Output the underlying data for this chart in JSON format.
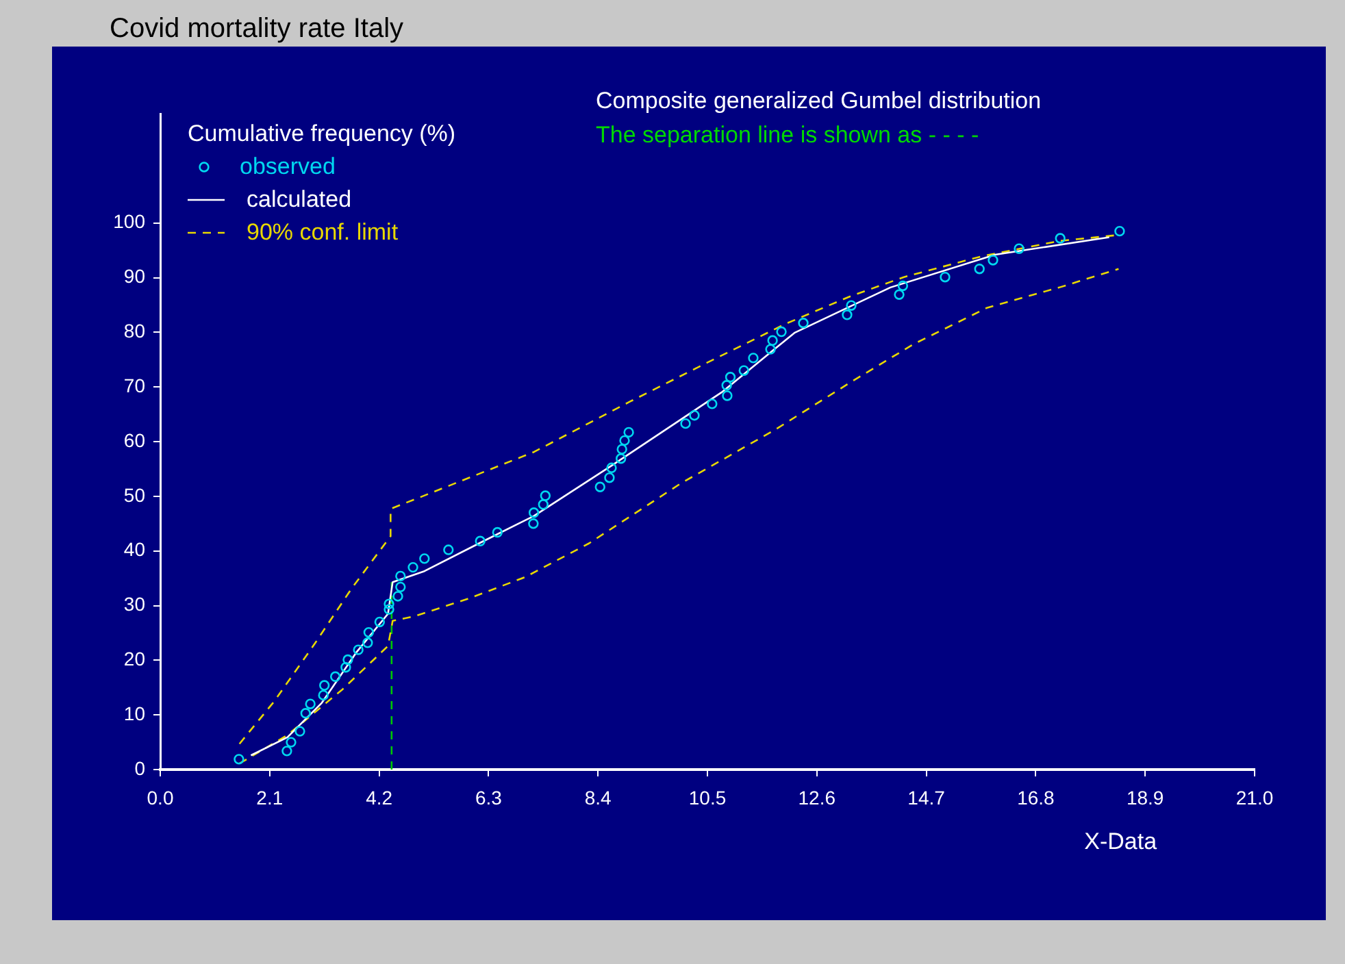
{
  "chart_data": {
    "type": "scatter",
    "title": "Covid mortality rate Italy",
    "xlabel": "X-Data",
    "ylabel": "Cumulative frequency (%)",
    "annotations": [
      "Composite generalized Gumbel distribution",
      "The separation line is shown as - - - -"
    ],
    "xlim": [
      0,
      21
    ],
    "xticks": [
      {
        "value": 0,
        "label": "0.0"
      },
      2.1,
      4.2,
      6.3,
      8.4,
      10.5,
      12.6,
      14.7,
      16.8,
      18.9,
      {
        "value": 21,
        "label": "21.0"
      }
    ],
    "ylim": [
      0,
      120
    ],
    "yticks": [
      0,
      10,
      20,
      30,
      40,
      50,
      60,
      70,
      80,
      90,
      100
    ],
    "grid": false,
    "legend": "top left",
    "series": [
      {
        "name": "observed",
        "type": "scatter",
        "marker": "circle",
        "color": "#00d8f0",
        "x": [
          1.51,
          2.43,
          2.51,
          2.68,
          2.79,
          2.88,
          3.13,
          3.15,
          3.36,
          3.56,
          3.6,
          3.8,
          3.98,
          4.0,
          4.21,
          4.39,
          4.39,
          4.56,
          4.61,
          4.61,
          4.85,
          5.07,
          5.53,
          6.14,
          6.47,
          7.16,
          7.17,
          7.35,
          7.39,
          8.44,
          8.62,
          8.66,
          8.84,
          8.86,
          8.91,
          8.99,
          10.08,
          10.25,
          10.59,
          10.88,
          10.87,
          10.94,
          11.2,
          11.38,
          11.71,
          11.75,
          11.92,
          12.34,
          13.18,
          13.26,
          14.18,
          14.25,
          15.06,
          15.72,
          15.98,
          16.48,
          17.27,
          18.41
        ],
        "values": [
          1.9,
          3.4,
          5.0,
          7.0,
          10.3,
          12.0,
          13.6,
          15.4,
          17.0,
          18.7,
          20.1,
          21.9,
          23.2,
          25.1,
          27.0,
          29.3,
          30.3,
          31.7,
          33.4,
          35.4,
          37.0,
          38.6,
          40.2,
          41.8,
          43.4,
          45.0,
          47.0,
          48.5,
          50.1,
          51.7,
          53.4,
          55.2,
          56.9,
          58.6,
          60.2,
          61.7,
          63.3,
          64.8,
          66.9,
          68.4,
          70.3,
          71.8,
          73.0,
          75.3,
          76.9,
          78.5,
          80.1,
          81.7,
          83.2,
          84.9,
          86.9,
          88.5,
          90.1,
          91.6,
          93.2,
          95.3,
          97.2,
          98.5
        ]
      },
      {
        "name": "calculated",
        "type": "line",
        "marker": "none",
        "line_style": "solid",
        "color": "#ffffff",
        "x": [
          1.74,
          2.44,
          3.1,
          3.76,
          4.37,
          4.46,
          5.07,
          6.12,
          7.17,
          8.66,
          10.77,
          12.17,
          14.01,
          16.02,
          18.21
        ],
        "values": [
          2.6,
          5.9,
          12.2,
          21.4,
          28.5,
          34.3,
          36.3,
          41.4,
          46.4,
          55.6,
          69.0,
          79.9,
          88.2,
          94.2,
          97.4
        ]
      },
      {
        "name": "90% conf. limit",
        "type": "line",
        "marker": "none",
        "line_style": "dashed",
        "color": "#e8d800",
        "x": [
          1.52,
          2.18,
          2.97,
          3.67,
          4.42,
          4.42,
          4.98,
          6.3,
          7.17,
          9.01,
          10.59,
          11.99,
          13.22,
          14.27,
          15.76,
          17.25,
          18.39
        ],
        "values": [
          4.7,
          12.4,
          23.1,
          33.1,
          42.7,
          47.7,
          49.8,
          54.8,
          58.1,
          67.3,
          74.9,
          81.5,
          86.5,
          90.1,
          93.9,
          96.7,
          97.8
        ]
      },
      {
        "type": "line",
        "marker": "none",
        "line_style": "dashed",
        "color": "#e8d800",
        "x": [
          1.52,
          2.44,
          3.5,
          4.37,
          4.46,
          4.9,
          5.95,
          7.0,
          8.23,
          9.98,
          11.82,
          13.22,
          14.45,
          15.87,
          17.25,
          18.39
        ],
        "values": [
          1.1,
          6.3,
          14.7,
          22.6,
          27.2,
          28.1,
          31.4,
          35.2,
          41.4,
          52.3,
          62.3,
          70.7,
          77.8,
          84.5,
          88.2,
          91.6
        ]
      },
      {
        "type": "line",
        "marker": "none",
        "line_style": "dashed",
        "color": "#00c800",
        "x": [
          4.44,
          4.44
        ],
        "values": [
          0,
          34.3
        ]
      }
    ]
  }
}
